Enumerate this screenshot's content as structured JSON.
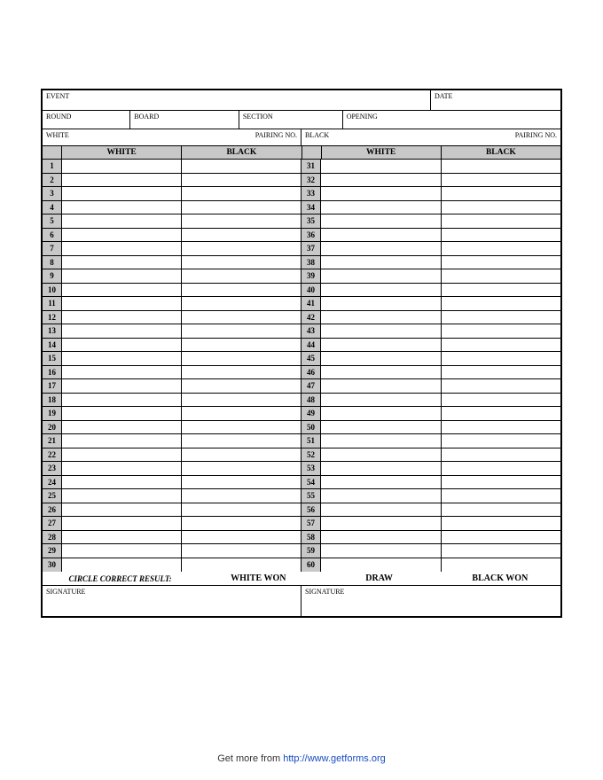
{
  "header": {
    "event_label": "EVENT",
    "date_label": "DATE",
    "round_label": "ROUND",
    "board_label": "BOARD",
    "section_label": "SECTION",
    "opening_label": "OPENING",
    "white_label": "WHITE",
    "black_label": "BLACK",
    "pairing_label": "PAIRING NO."
  },
  "moves_table": {
    "col_white": "WHITE",
    "col_black": "BLACK",
    "left_start": 1,
    "left_end": 30,
    "right_start": 31,
    "right_end": 60
  },
  "result": {
    "label": "CIRCLE CORRECT RESULT:",
    "white_won": "WHITE WON",
    "draw": "DRAW",
    "black_won": "BLACK WON"
  },
  "signature_label": "SIGNATURE",
  "footer": {
    "prefix": "Get more from ",
    "link_text": "http://www.getforms.org"
  },
  "colors": {
    "header_gray": "#c8c8c8",
    "border": "#000000",
    "background": "#ffffff",
    "link": "#1a4cc4"
  }
}
